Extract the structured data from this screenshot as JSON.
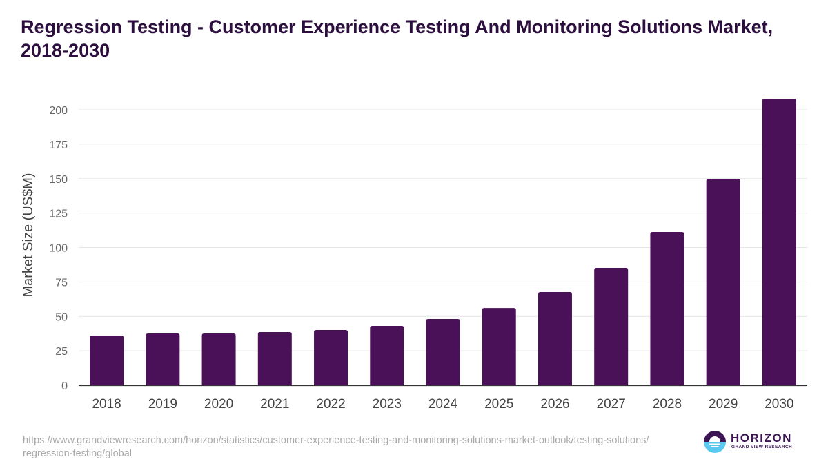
{
  "title": "Regression Testing - Customer Experience Testing And Monitoring Solutions Market, 2018-2030",
  "source_url": "https://www.grandviewresearch.com/horizon/statistics/customer-experience-testing-and-monitoring-solutions-market-outlook/testing-solutions/regression-testing/global",
  "logo": {
    "name": "HORIZON",
    "subtitle": "GRAND VIEW RESEARCH"
  },
  "colors": {
    "bar": "#4a1158",
    "title": "#2c0f3e",
    "grid": "#e6e6e6",
    "axis_text": "#666666"
  },
  "chart_data": {
    "type": "bar",
    "title": "Regression Testing - Customer Experience Testing And Monitoring Solutions Market, 2018-2030",
    "xlabel": "",
    "ylabel": "Market Size (US$M)",
    "categories": [
      "2018",
      "2019",
      "2020",
      "2021",
      "2022",
      "2023",
      "2024",
      "2025",
      "2026",
      "2027",
      "2028",
      "2029",
      "2030"
    ],
    "values": [
      36.1,
      37.6,
      37.6,
      38.6,
      40.1,
      43.1,
      48.1,
      56.1,
      67.7,
      85.2,
      111.3,
      149.9,
      208.0
    ],
    "ylim": [
      0,
      200
    ],
    "yticks": [
      0,
      25,
      50,
      75,
      100,
      125,
      150,
      175,
      200
    ],
    "grid": true,
    "legend": "none"
  }
}
